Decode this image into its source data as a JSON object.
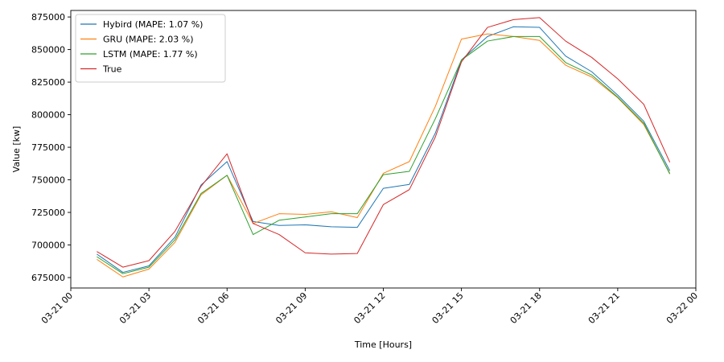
{
  "chart_data": {
    "type": "line",
    "title": "",
    "xlabel": "Time [Hours]",
    "ylabel": "Value [kw]",
    "x": [
      "03-21 01:00",
      "03-21 02:00",
      "03-21 03:00",
      "03-21 04:00",
      "03-21 05:00",
      "03-21 06:00",
      "03-21 07:00",
      "03-21 08:00",
      "03-21 09:00",
      "03-21 10:00",
      "03-21 11:00",
      "03-21 12:00",
      "03-21 13:00",
      "03-21 14:00",
      "03-21 15:00",
      "03-21 16:00",
      "03-21 17:00",
      "03-21 18:00",
      "03-21 19:00",
      "03-21 20:00",
      "03-21 21:00",
      "03-21 22:00",
      "03-21 23:00"
    ],
    "xlim": [
      "03-21 00:00",
      "03-22 00:00"
    ],
    "x_ticks": [
      "03-21 00",
      "03-21 03",
      "03-21 06",
      "03-21 09",
      "03-21 12",
      "03-21 15",
      "03-21 18",
      "03-21 21",
      "03-22 00"
    ],
    "ylim": [
      667000,
      880000
    ],
    "y_ticks": [
      675000,
      700000,
      725000,
      750000,
      775000,
      800000,
      825000,
      850000,
      875000
    ],
    "grid": false,
    "legend_position": "top-left",
    "series": [
      {
        "name": "Hybird (MAPE: 1.07 %)",
        "color": "#1f77b4",
        "values": [
          693000,
          679000,
          684000,
          706000,
          746000,
          764000,
          718000,
          715000,
          715500,
          714000,
          713500,
          743500,
          746500,
          786000,
          842000,
          860000,
          867500,
          867000,
          845000,
          833000,
          815000,
          795000,
          757000
        ]
      },
      {
        "name": "GRU (MAPE: 2.03 %)",
        "color": "#ff7f0e",
        "values": [
          689000,
          675500,
          681500,
          702000,
          738500,
          753500,
          716500,
          724000,
          723500,
          725500,
          721000,
          755000,
          764000,
          806500,
          858000,
          862000,
          860000,
          857000,
          838000,
          829000,
          813000,
          792500,
          755000
        ]
      },
      {
        "name": "LSTM (MAPE: 1.77 %)",
        "color": "#2ca02c",
        "values": [
          691000,
          678000,
          683000,
          704000,
          739500,
          753500,
          708000,
          719000,
          721500,
          724000,
          724000,
          754000,
          756500,
          797000,
          842000,
          856500,
          860000,
          860000,
          840000,
          830500,
          813500,
          793500,
          754500
        ]
      },
      {
        "name": "True",
        "color": "#d62728",
        "values": [
          695000,
          683000,
          688000,
          710500,
          745000,
          770000,
          716500,
          708000,
          694000,
          693000,
          693500,
          731000,
          742500,
          783000,
          840500,
          867000,
          873000,
          874500,
          856500,
          844000,
          827500,
          808000,
          763500
        ]
      }
    ]
  }
}
